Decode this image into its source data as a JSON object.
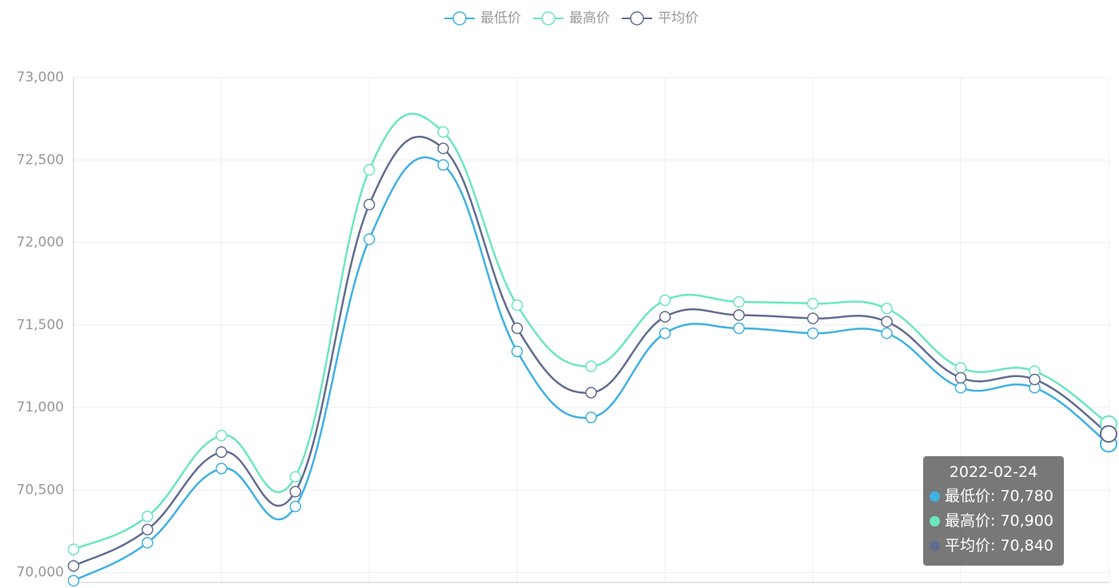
{
  "chart_data": {
    "type": "line",
    "categories": [
      null,
      null,
      null,
      null,
      null,
      null,
      null,
      null,
      null,
      null,
      null,
      null,
      null,
      null,
      "2022-02-24"
    ],
    "series": [
      {
        "name": "最低价",
        "color": "#3fb1e3",
        "values": [
          69950,
          70180,
          70630,
          70400,
          72020,
          72470,
          71340,
          70940,
          71450,
          71480,
          71450,
          71450,
          71120,
          71120,
          70780
        ],
        "value_labels": [
          null,
          null,
          null,
          null,
          null,
          null,
          null,
          null,
          null,
          null,
          null,
          null,
          null,
          null,
          "70,780"
        ]
      },
      {
        "name": "最高价",
        "color": "#6be6c1",
        "values": [
          70140,
          70340,
          70830,
          70580,
          72440,
          72670,
          71620,
          71250,
          71650,
          71640,
          71630,
          71600,
          71240,
          71220,
          70900
        ],
        "value_labels": [
          null,
          null,
          null,
          null,
          null,
          null,
          null,
          null,
          null,
          null,
          null,
          null,
          null,
          null,
          "70,900"
        ]
      },
      {
        "name": "平均价",
        "color": "#626c91",
        "values": [
          70040,
          70260,
          70730,
          70490,
          72230,
          72570,
          71480,
          71090,
          71550,
          71560,
          71540,
          71520,
          71180,
          71170,
          70840
        ],
        "value_labels": [
          null,
          null,
          null,
          null,
          null,
          null,
          null,
          null,
          null,
          null,
          null,
          null,
          null,
          null,
          "70,840"
        ]
      }
    ],
    "ylim": [
      69940,
      73000
    ],
    "yticks": [
      {
        "value": 70000,
        "label": "70,000"
      },
      {
        "value": 70500,
        "label": "70,500"
      },
      {
        "value": 71000,
        "label": "71,000"
      },
      {
        "value": 71500,
        "label": "71,500"
      },
      {
        "value": 72000,
        "label": "72,000"
      },
      {
        "value": 72500,
        "label": "72,500"
      },
      {
        "value": 73000,
        "label": "73,000"
      }
    ],
    "grid": true,
    "smooth": true,
    "legend": "top",
    "tooltip_index": 14
  }
}
